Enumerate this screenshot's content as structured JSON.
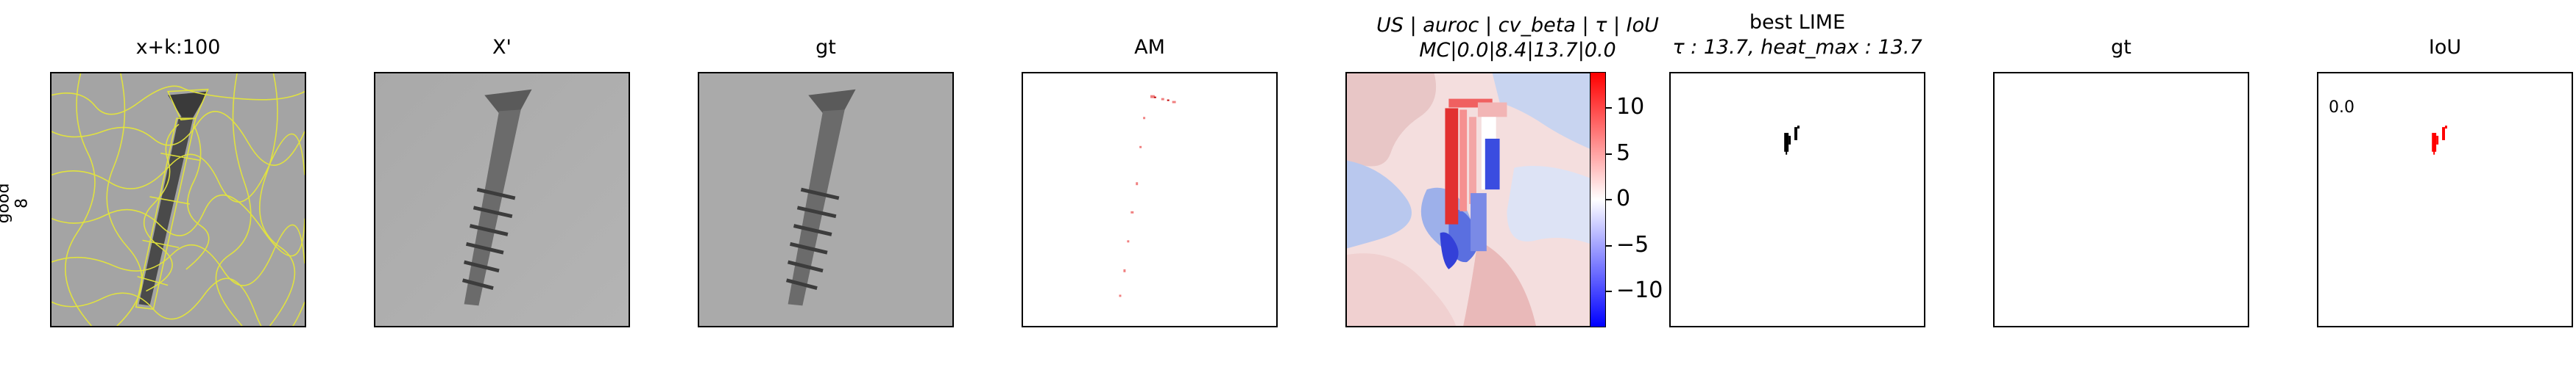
{
  "row_label": {
    "line1": "good",
    "line2": "8"
  },
  "panels": [
    {
      "title": "x+k:100",
      "kind": "superpixels"
    },
    {
      "title": "X'",
      "kind": "image"
    },
    {
      "title": "gt",
      "kind": "image"
    },
    {
      "title": "AM",
      "kind": "attribution_map"
    },
    {
      "title_line1": "US | auroc | cv_beta | τ | IoU",
      "title_line2": "MC|0.0|8.4|13.7|0.0",
      "kind": "heatmap"
    },
    {
      "title_line1": "best LIME",
      "title_line2": "τ : 13.7, heat_max : 13.7",
      "kind": "binary_mask"
    },
    {
      "title": "gt",
      "kind": "empty_mask"
    },
    {
      "title": "IoU",
      "kind": "iou_overlay",
      "corner_text": "0.0"
    }
  ],
  "colorbar": {
    "ticks": [
      "10",
      "5",
      "0",
      "−5",
      "−10"
    ],
    "tick_values": [
      10,
      5,
      0,
      -5,
      -10
    ],
    "range": [
      -13.7,
      13.7
    ],
    "colormap": "bwr",
    "colors": {
      "low": "#0000ff",
      "mid": "#ffffff",
      "high": "#ff0000"
    }
  },
  "colors": {
    "superpixel_edges": "#e5e63a",
    "mask_black": "#000000",
    "iou_red": "#ff0000",
    "background_gray": "#a6a6a6"
  }
}
